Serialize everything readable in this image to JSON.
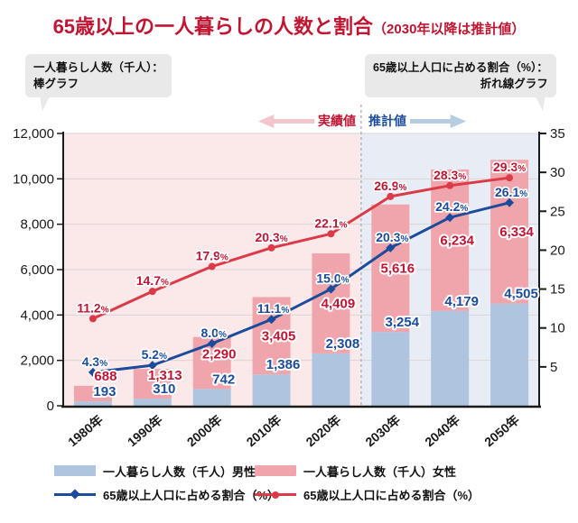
{
  "title": {
    "main": "65歳以上の一人暮らしの人数と割合",
    "sub": "（2030年以降は推計値）"
  },
  "callouts": {
    "left": {
      "line1": "一人暮らし人数（千人）：",
      "line2": "棒グラフ"
    },
    "right": {
      "line1": "65歳以上人口に占める割合（%）：",
      "line2": "折れ線グラフ"
    }
  },
  "period_labels": {
    "actual": "実績値",
    "projected": "推計値"
  },
  "legend": {
    "items": [
      {
        "label": "一人暮らし人数（千人）男性"
      },
      {
        "label": "一人暮らし人数（千人）女性"
      },
      {
        "label": "65歳以上人口に占める割合（%）"
      },
      {
        "label": "65歳以上人口に占める割合（%）"
      }
    ]
  },
  "chart_data": {
    "type": "bar+line",
    "categories": [
      "1980年",
      "1990年",
      "2000年",
      "2010年",
      "2020年",
      "2030年",
      "2040年",
      "2050年"
    ],
    "series": [
      {
        "name": "一人暮らし人数（千人）男性",
        "type": "bar",
        "axis": "left",
        "stack": "people",
        "color": "#AFC4DF",
        "values": [
          193,
          310,
          742,
          1386,
          2308,
          3254,
          4179,
          4505
        ]
      },
      {
        "name": "一人暮らし人数（千人）女性",
        "type": "bar",
        "axis": "left",
        "stack": "people",
        "color": "#F0A5AD",
        "values": [
          688,
          1313,
          2290,
          3405,
          4409,
          5616,
          6234,
          6334
        ]
      },
      {
        "name": "65歳以上人口に占める割合（%）男性",
        "type": "line",
        "axis": "right",
        "marker": "diamond",
        "color": "#1B4C9B",
        "values": [
          4.3,
          5.2,
          8.0,
          11.1,
          15.0,
          20.3,
          24.2,
          26.1
        ]
      },
      {
        "name": "65歳以上人口に占める割合（%）女性",
        "type": "line",
        "axis": "right",
        "marker": "circle",
        "color": "#DC3A48",
        "values": [
          11.2,
          14.7,
          17.9,
          20.3,
          22.1,
          26.9,
          28.3,
          29.3
        ]
      }
    ],
    "left_axis": {
      "min": 0,
      "max": 12000,
      "step": 2000,
      "ticks": [
        "0",
        "2,000",
        "4,000",
        "6,000",
        "8,000",
        "10,000",
        "12,000"
      ]
    },
    "right_axis": {
      "min": 0,
      "max": 35,
      "step": 5,
      "ticks": [
        "5",
        "10",
        "15",
        "20",
        "25",
        "30",
        "35"
      ]
    },
    "actual_count": 5,
    "bg_actual": "#FBE9EA",
    "bg_projected": "#E8EDF5",
    "colors": {
      "text_red": "#BF1532",
      "text_blue": "#1B4C9B",
      "grid": "#DAD4D6",
      "axis": "#1A1A1A",
      "divider": "#A9B2C2",
      "tick_text": "#1A1A1A"
    },
    "grid": "horizontal, left-axis steps",
    "legend_position": "bottom"
  }
}
